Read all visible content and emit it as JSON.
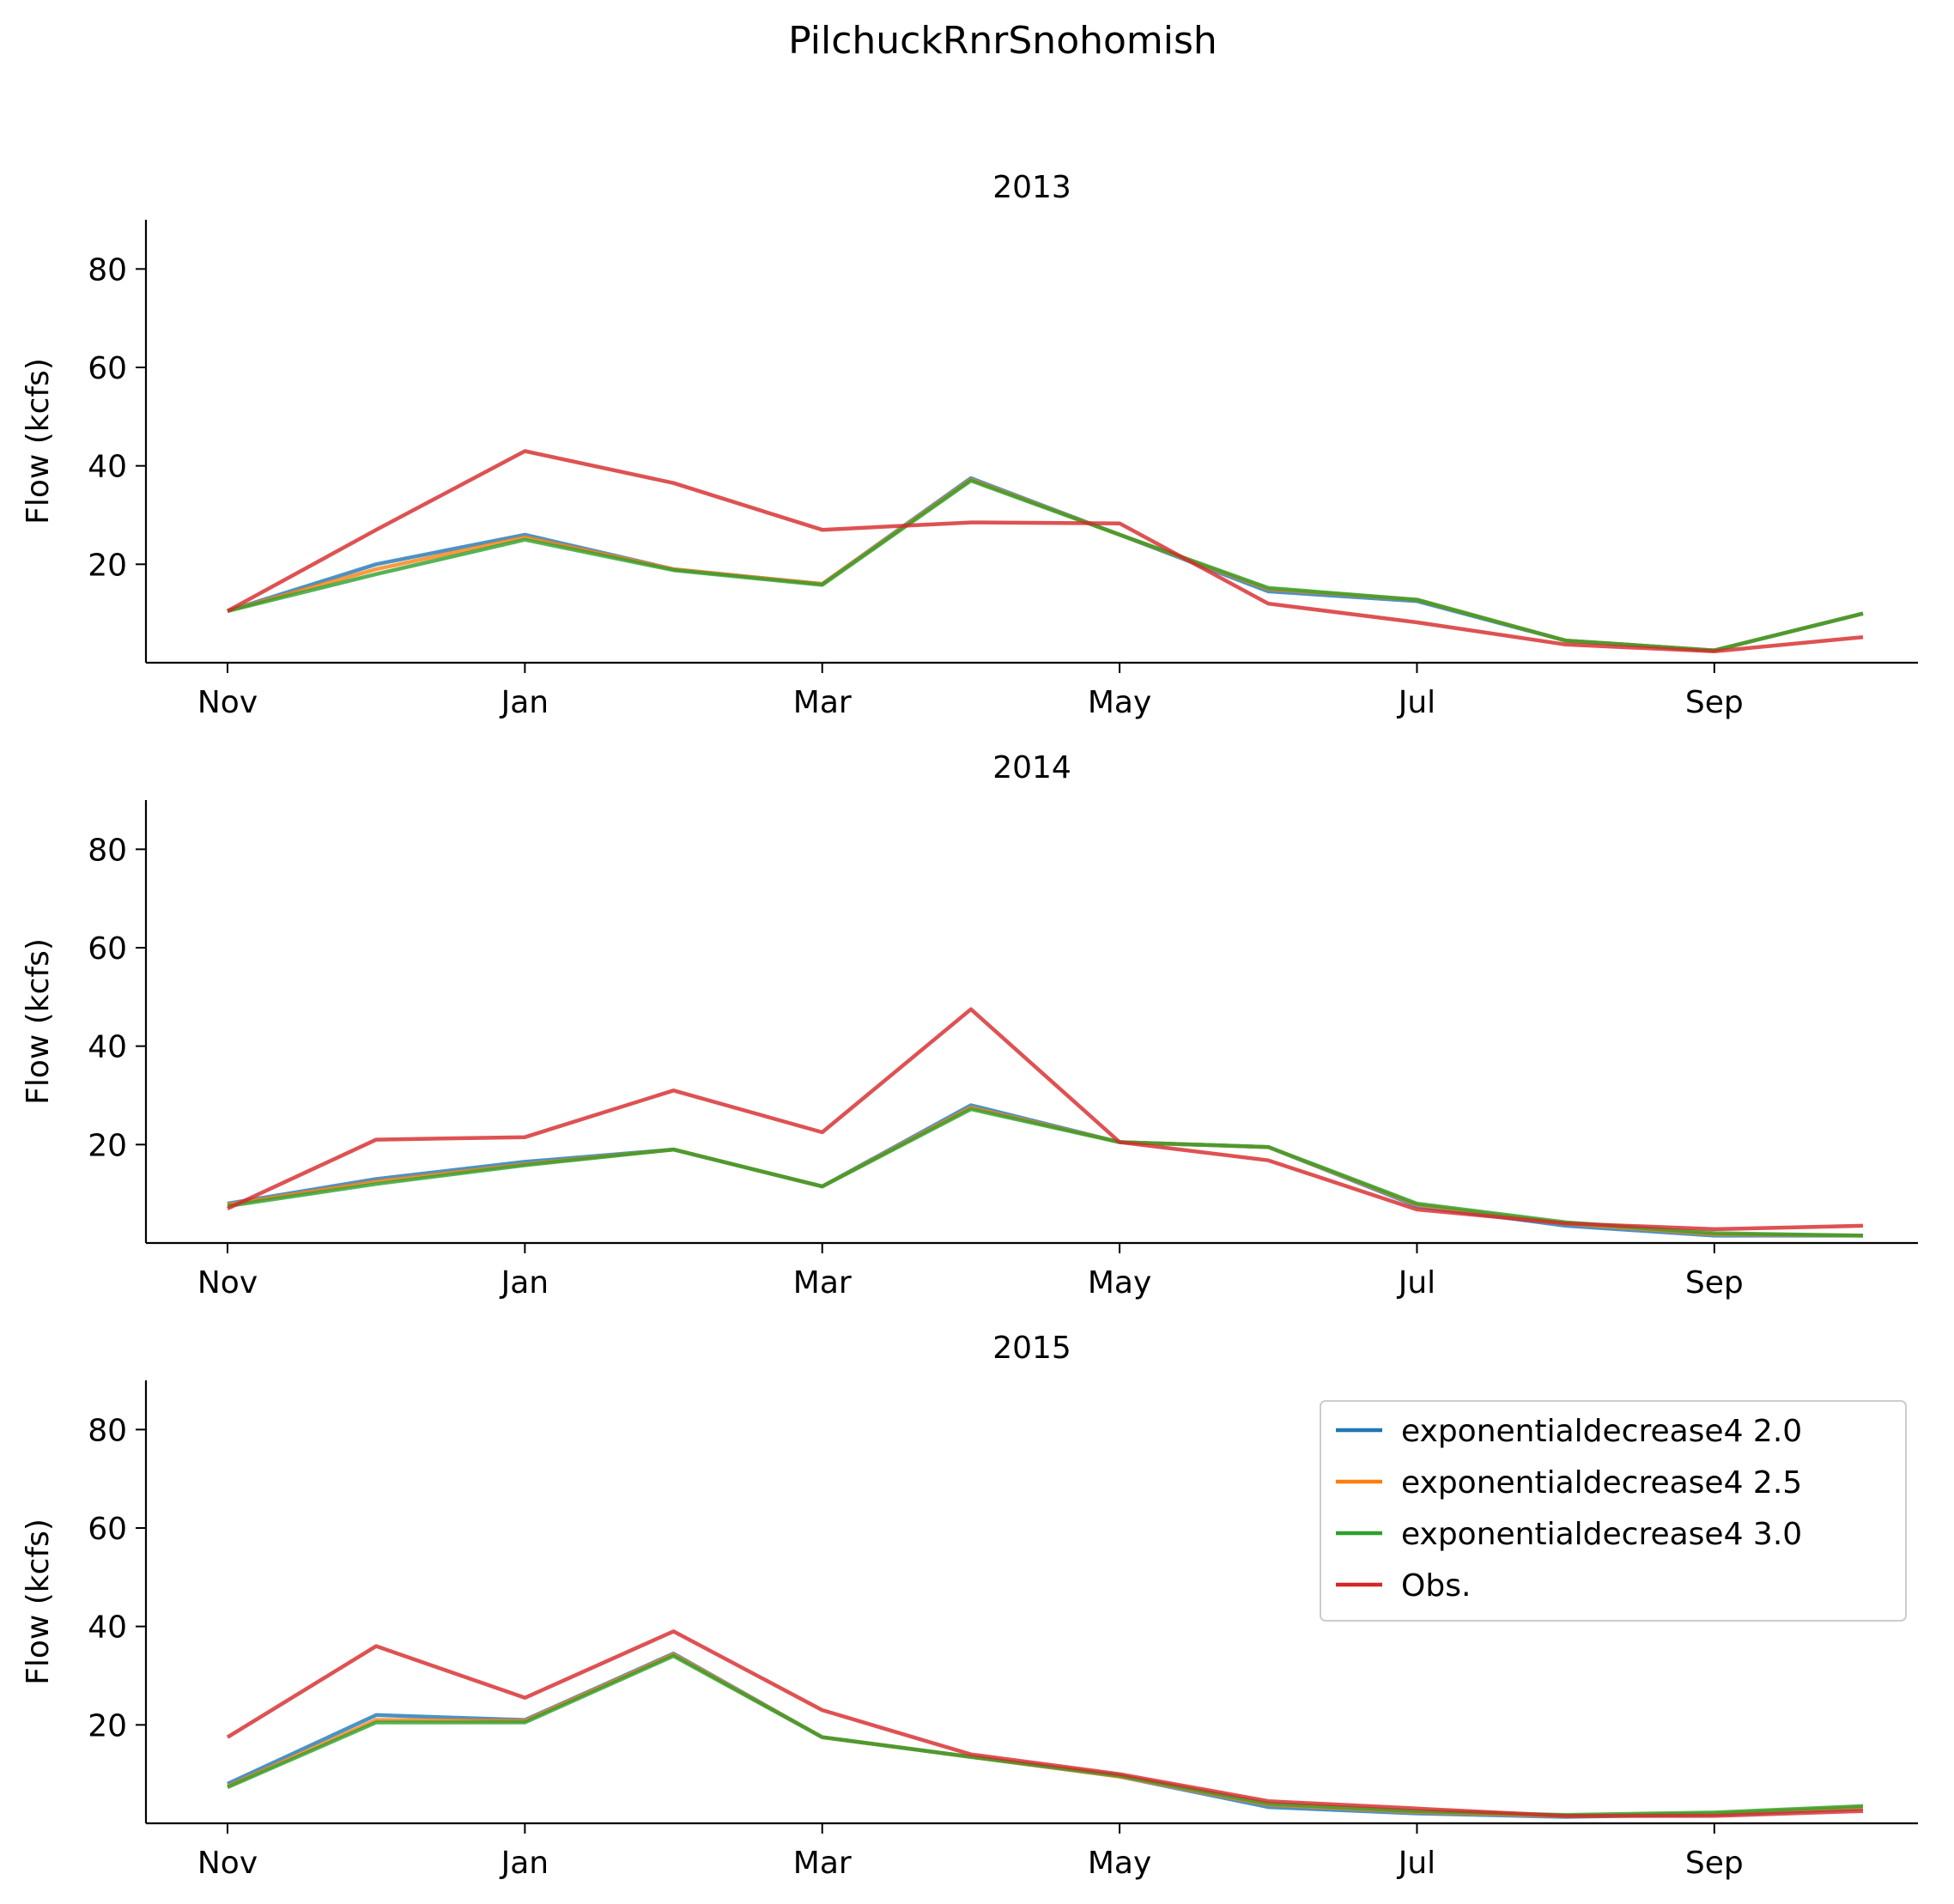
{
  "figure_title": "PilchuckRnrSnohomish",
  "chart_data": {
    "type": "line",
    "ylabel": "Flow (kcfs)",
    "month_ticks": [
      "Nov",
      "Jan",
      "Mar",
      "May",
      "Jul",
      "Sep"
    ],
    "month_tick_index": [
      0,
      2,
      4,
      6,
      8,
      10
    ],
    "yticks": [
      20,
      40,
      60,
      80
    ],
    "ylim": [
      0,
      90
    ],
    "legend_position": "upper right (2015 panel)",
    "legend": [
      {
        "label": "exponentialdecrease4 2.0",
        "color": "#1f77b4"
      },
      {
        "label": "exponentialdecrease4 2.5",
        "color": "#ff7f0e"
      },
      {
        "label": "exponentialdecrease4 3.0",
        "color": "#2ca02c"
      },
      {
        "label": "Obs.",
        "color": "#d62728"
      }
    ],
    "panels": [
      {
        "title": "2013",
        "series": [
          {
            "name": "exponentialdecrease4 2.0",
            "color": "#1f77b4",
            "values": [
              10.5,
              20.0,
              26.0,
              19.0,
              16.0,
              37.5,
              26.0,
              14.5,
              12.5,
              4.5,
              2.5,
              10.0
            ]
          },
          {
            "name": "exponentialdecrease4 2.5",
            "color": "#ff7f0e",
            "values": [
              10.5,
              19.0,
              25.5,
              19.0,
              16.0,
              37.2,
              26.0,
              15.0,
              12.8,
              4.5,
              2.5,
              10.0
            ]
          },
          {
            "name": "exponentialdecrease4 3.0",
            "color": "#2ca02c",
            "values": [
              10.5,
              18.0,
              25.0,
              18.8,
              15.8,
              37.0,
              26.0,
              15.2,
              12.8,
              4.5,
              2.5,
              10.0
            ]
          },
          {
            "name": "Obs.",
            "color": "#d62728",
            "values": [
              10.5,
              27.0,
              43.0,
              36.5,
              27.0,
              28.5,
              28.3,
              12.0,
              8.2,
              3.7,
              2.3,
              5.2
            ]
          }
        ]
      },
      {
        "title": "2014",
        "series": [
          {
            "name": "exponentialdecrease4 2.0",
            "color": "#1f77b4",
            "values": [
              8.0,
              13.0,
              16.5,
              19.0,
              11.5,
              28.0,
              20.5,
              19.5,
              7.5,
              3.5,
              1.5,
              1.5
            ]
          },
          {
            "name": "exponentialdecrease4 2.5",
            "color": "#ff7f0e",
            "values": [
              7.8,
              12.5,
              16.0,
              19.0,
              11.5,
              27.5,
              20.5,
              19.5,
              7.8,
              4.0,
              1.8,
              1.5
            ]
          },
          {
            "name": "exponentialdecrease4 3.0",
            "color": "#2ca02c",
            "values": [
              7.5,
              12.0,
              15.8,
              19.0,
              11.5,
              27.2,
              20.5,
              19.5,
              8.0,
              4.2,
              2.0,
              1.5
            ]
          },
          {
            "name": "Obs.",
            "color": "#d62728",
            "values": [
              7.0,
              21.0,
              21.5,
              31.0,
              22.5,
              47.5,
              20.5,
              16.8,
              6.8,
              4.0,
              2.8,
              3.5
            ]
          }
        ]
      },
      {
        "title": "2015",
        "series": [
          {
            "name": "exponentialdecrease4 2.0",
            "color": "#1f77b4",
            "values": [
              8.0,
              22.0,
              21.0,
              34.5,
              17.5,
              13.5,
              9.5,
              3.3,
              2.0,
              1.3,
              1.8,
              3.0
            ]
          },
          {
            "name": "exponentialdecrease4 2.5",
            "color": "#ff7f0e",
            "values": [
              7.5,
              21.0,
              20.8,
              34.3,
              17.5,
              13.5,
              9.5,
              3.8,
              2.3,
              1.5,
              2.0,
              3.3
            ]
          },
          {
            "name": "exponentialdecrease4 3.0",
            "color": "#2ca02c",
            "values": [
              7.3,
              20.5,
              20.5,
              34.0,
              17.5,
              13.5,
              9.7,
              4.0,
              2.5,
              1.7,
              2.2,
              3.5
            ]
          },
          {
            "name": "Obs.",
            "color": "#d62728",
            "values": [
              17.5,
              36.0,
              25.5,
              39.0,
              23.0,
              14.0,
              10.0,
              4.5,
              3.0,
              1.5,
              1.5,
              2.5
            ]
          }
        ]
      }
    ]
  }
}
